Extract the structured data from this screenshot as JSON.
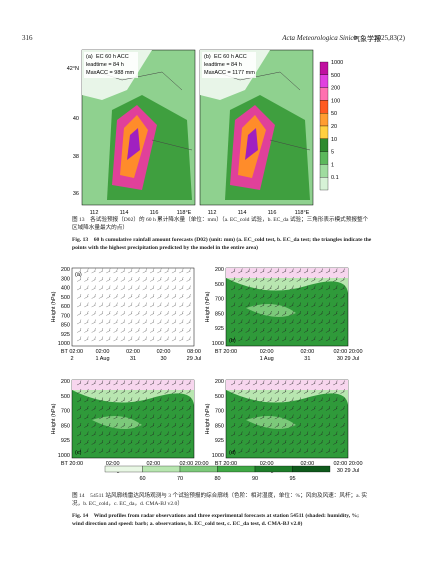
{
  "header": {
    "page_number": "316",
    "journal": "Acta Meteorologica Sinica",
    "journal_cn": "气象学报",
    "issue": "2025,83(2)"
  },
  "figure13": {
    "panels": [
      {
        "label": "(a)",
        "lines": [
          "EC 60 h ACC",
          "leadtime = 84 h",
          "MaxACC = 988 mm"
        ]
      },
      {
        "label": "(b)",
        "lines": [
          "EC 60 h ACC",
          "leadtime = 84 h",
          "MaxACC = 1177 mm"
        ]
      }
    ],
    "lat_labels": [
      "42°N",
      "40",
      "38",
      "36"
    ],
    "lon_labels": [
      "112",
      "114",
      "116",
      "118°E"
    ],
    "colorbar_labels": [
      "1000",
      "500",
      "200",
      "100",
      "50",
      "20",
      "10",
      "5",
      "1",
      "0.1"
    ],
    "caption_cn": "图 13　各试验预报（D02）的 60 h 累计降水量（单位：mm）（a. EC_cold 试验，b. EC_da 试验；三角形表示模式预报整个区域降水量最大的点）",
    "caption_en": "Fig. 13　60 h cumulative rainfall amount forecasts (D02) (unit: mm) (a. EC_cold test, b. EC_da test; the triangles indicate the points with the highest precipitation predicted by the model in the entire area)"
  },
  "figure14": {
    "y_title": "Height (hPa)",
    "panels": [
      {
        "label": "(a)",
        "y_labels": [
          "200",
          "300",
          "400",
          "500",
          "600",
          "700",
          "850",
          "925",
          "1000"
        ],
        "x_ticks": [
          {
            "time": "BT 02:00",
            "date": "2"
          },
          {
            "time": "02:00",
            "date": "1 Aug"
          },
          {
            "time": "02:00",
            "date": "31"
          },
          {
            "time": "02:00",
            "date": "30"
          },
          {
            "time": "08:00",
            "date": "29 Jul"
          }
        ]
      },
      {
        "label": "(b)",
        "y_labels": [
          "200",
          "500",
          "700",
          "850",
          "925",
          "1000"
        ],
        "x_ticks": [
          {
            "time": "BT 20:00"
          },
          {
            "time": "02:00",
            "date": "1 Aug"
          },
          {
            "time": "02:00",
            "date": "31"
          },
          {
            "time": "02:00 20:00",
            "date": "30  29 Jul"
          }
        ]
      },
      {
        "label": "(c)",
        "y_labels": [
          "200",
          "500",
          "700",
          "850",
          "925",
          "1000"
        ],
        "x_ticks": [
          {
            "time": "BT 20:00"
          },
          {
            "time": "02:00",
            "date": "1 Aug"
          },
          {
            "time": "02:00",
            "date": "31"
          },
          {
            "time": "02:00 20:00",
            "date": "30  29 Jul"
          }
        ]
      },
      {
        "label": "(d)",
        "y_labels": [
          "200",
          "500",
          "700",
          "850",
          "925",
          "1000"
        ],
        "x_ticks": [
          {
            "time": "BT 20:00"
          },
          {
            "time": "02:00",
            "date": "1 Aug"
          },
          {
            "time": "02:00",
            "date": "31"
          },
          {
            "time": "02:00 20:00",
            "date": "30  29 Jul"
          }
        ]
      }
    ],
    "colorbar_labels": [
      "60",
      "70",
      "80",
      "90",
      "95"
    ],
    "caption_cn": "图 14　54511 站风廓线雷达风场观测与 3 个试验预报的综合廓线（色阶：相对湿度，单位：%；风向及风速：风杆；a. 实况，b. EC_cold，c. EC_da，d. CMA-BJ v2.0）",
    "caption_en": "Fig. 14　Wind profiles from radar observations and three experimental forecasts at station 54511 (shaded: humidity, %; wind direction and speed: barb; a. observations, b. EC_cold test, c. EC_da test, d. CMA-BJ v2.0)"
  }
}
